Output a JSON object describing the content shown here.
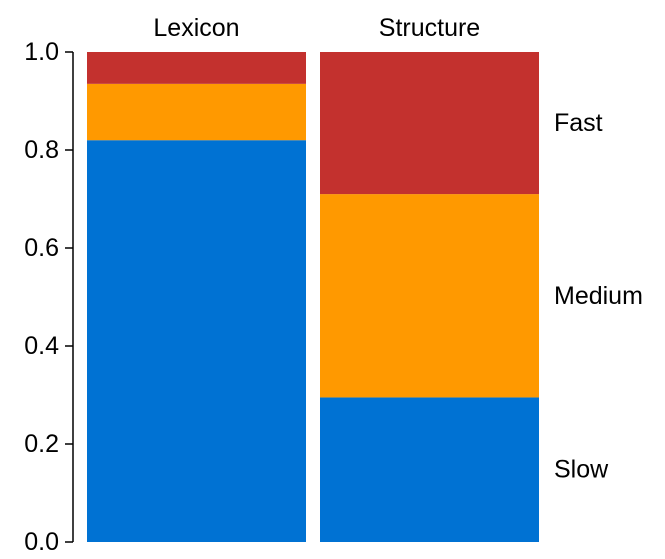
{
  "chart_data": {
    "type": "bar",
    "stacked": true,
    "normalized": true,
    "categories": [
      "Lexicon",
      "Structure"
    ],
    "series": [
      {
        "name": "Slow",
        "color": "#0072D3",
        "values": [
          0.82,
          0.295
        ]
      },
      {
        "name": "Medium",
        "color": "#FF9900",
        "values": [
          0.115,
          0.415
        ]
      },
      {
        "name": "Fast",
        "color": "#C3312E",
        "values": [
          0.065,
          0.29
        ]
      }
    ],
    "ylim": [
      0,
      1
    ],
    "yticks": [
      "0.0",
      "0.2",
      "0.4",
      "0.6",
      "0.8",
      "1.0"
    ],
    "title": "",
    "xlabel": "",
    "ylabel": "",
    "grid": false,
    "legend_placement": "right, inline beside the last bar"
  }
}
